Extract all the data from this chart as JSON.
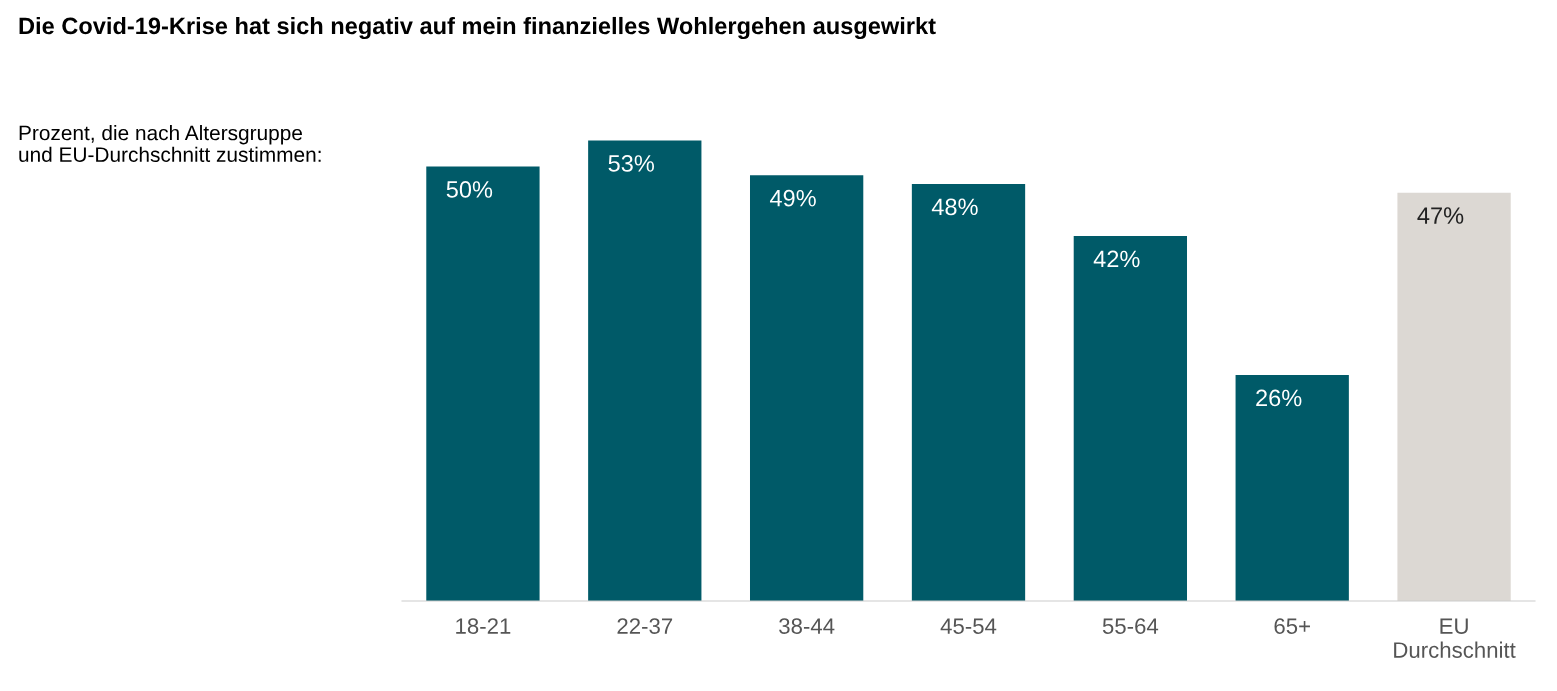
{
  "chart_data": {
    "type": "bar",
    "title": "Die Covid-19-Krise hat sich negativ auf mein finanzielles Wohlergehen ausgewirkt",
    "subtitle": "Prozent, die nach Altersgruppe\nund EU-Durchschnitt zustimmen:",
    "categories": [
      "18-21",
      "22-37",
      "38-44",
      "45-54",
      "55-64",
      "65+",
      "EU\nDurchschnitt"
    ],
    "values": [
      50,
      53,
      49,
      48,
      42,
      26,
      47
    ],
    "colors": [
      "#005a68",
      "#005a68",
      "#005a68",
      "#005a68",
      "#005a68",
      "#005a68",
      "#dcd8d3"
    ],
    "value_labels": [
      "50%",
      "53%",
      "49%",
      "48%",
      "42%",
      "26%",
      "47%"
    ],
    "grid": false,
    "legend": false
  }
}
